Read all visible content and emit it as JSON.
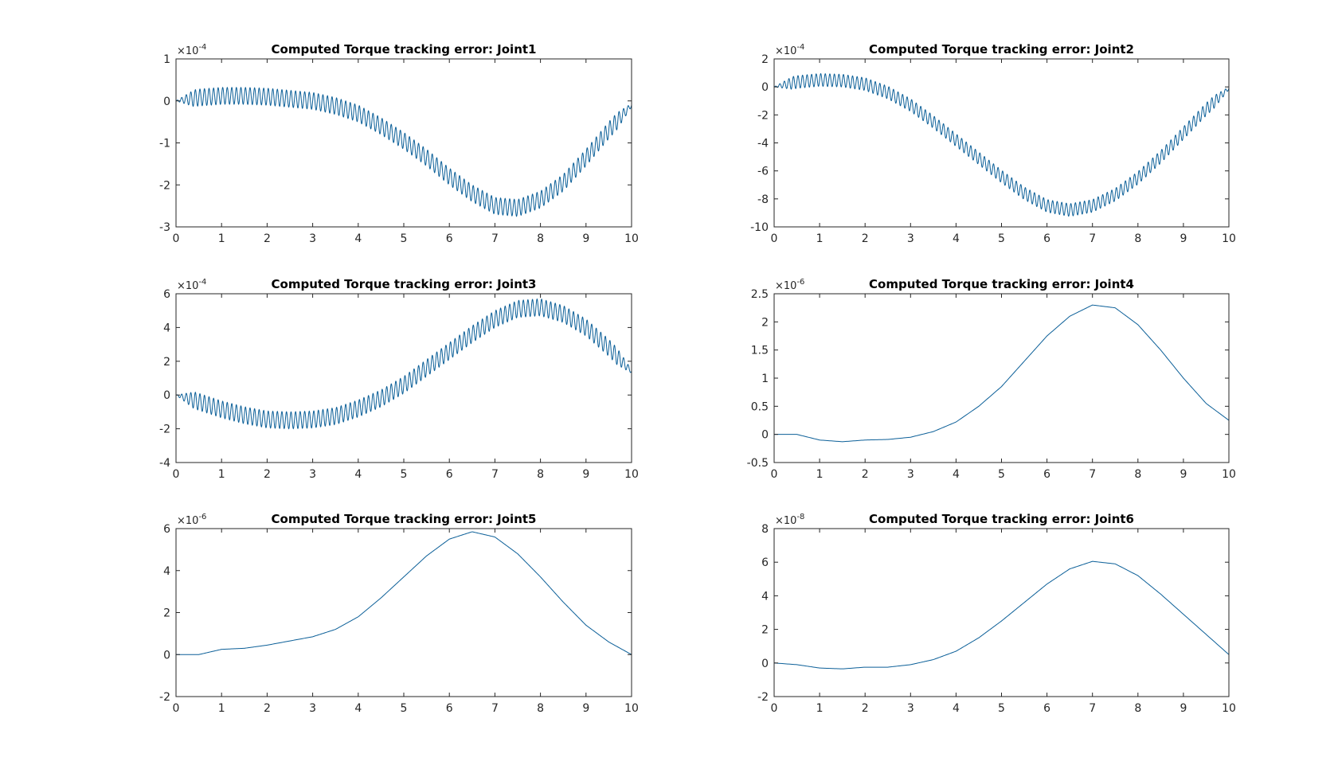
{
  "chart_data": [
    {
      "type": "line",
      "title": "Computed Torque tracking error: Joint1",
      "xlim": [
        0,
        10
      ],
      "ylim": [
        -3,
        1
      ],
      "y_exponent": "-4",
      "xticks": [
        "0",
        "1",
        "2",
        "3",
        "4",
        "5",
        "6",
        "7",
        "8",
        "9",
        "10"
      ],
      "yticks": [
        "-3",
        "-2",
        "-1",
        "0",
        "1"
      ],
      "grid": false,
      "x": [
        0,
        0.5,
        1,
        1.5,
        2,
        2.5,
        3,
        3.5,
        4,
        4.5,
        5,
        5.5,
        6,
        6.5,
        7,
        7.5,
        8,
        8.5,
        9,
        9.5,
        10
      ],
      "series": [
        {
          "values": [
            0,
            0.08,
            0.12,
            0.12,
            0.1,
            0.05,
            0.0,
            -0.12,
            -0.3,
            -0.6,
            -0.95,
            -1.35,
            -1.8,
            -2.2,
            -2.5,
            -2.55,
            -2.35,
            -1.95,
            -1.35,
            -0.7,
            -0.1
          ],
          "oscillation_amplitude": 0.2
        }
      ]
    },
    {
      "type": "line",
      "title": "Computed Torque tracking error: Joint2",
      "xlim": [
        0,
        10
      ],
      "ylim": [
        -10,
        2
      ],
      "y_exponent": "-4",
      "xticks": [
        "0",
        "1",
        "2",
        "3",
        "4",
        "5",
        "6",
        "7",
        "8",
        "9",
        "10"
      ],
      "yticks": [
        "-10",
        "-8",
        "-6",
        "-4",
        "-2",
        "0",
        "2"
      ],
      "grid": false,
      "x": [
        0,
        0.5,
        1,
        1.5,
        2,
        2.5,
        3,
        3.5,
        4,
        4.5,
        5,
        5.5,
        6,
        6.5,
        7,
        7.5,
        8,
        8.5,
        9,
        9.5,
        10
      ],
      "series": [
        {
          "values": [
            0,
            0.35,
            0.5,
            0.45,
            0.2,
            -0.4,
            -1.3,
            -2.5,
            -3.8,
            -5.1,
            -6.4,
            -7.6,
            -8.5,
            -8.8,
            -8.5,
            -7.7,
            -6.5,
            -5.0,
            -3.3,
            -1.6,
            -0.1
          ],
          "oscillation_amplitude": 0.45
        }
      ]
    },
    {
      "type": "line",
      "title": "Computed Torque tracking error: Joint3",
      "xlim": [
        0,
        10
      ],
      "ylim": [
        -4,
        6
      ],
      "y_exponent": "-4",
      "xticks": [
        "0",
        "1",
        "2",
        "3",
        "4",
        "5",
        "6",
        "7",
        "8",
        "9",
        "10"
      ],
      "yticks": [
        "-4",
        "-2",
        "0",
        "2",
        "4",
        "6"
      ],
      "grid": false,
      "x": [
        0,
        0.5,
        1,
        1.5,
        2,
        2.5,
        3,
        3.5,
        4,
        4.5,
        5,
        5.5,
        6,
        6.5,
        7,
        7.5,
        8,
        8.5,
        9,
        9.5,
        10
      ],
      "series": [
        {
          "values": [
            0,
            -0.4,
            -0.85,
            -1.2,
            -1.45,
            -1.5,
            -1.45,
            -1.25,
            -0.8,
            -0.2,
            0.6,
            1.6,
            2.6,
            3.6,
            4.5,
            5.1,
            5.2,
            4.8,
            4.0,
            2.8,
            1.4
          ],
          "oscillation_amplitude": 0.5
        }
      ]
    },
    {
      "type": "line",
      "title": "Computed Torque tracking error: Joint4",
      "xlim": [
        0,
        10
      ],
      "ylim": [
        -0.5,
        2.5
      ],
      "y_exponent": "-6",
      "xticks": [
        "0",
        "1",
        "2",
        "3",
        "4",
        "5",
        "6",
        "7",
        "8",
        "9",
        "10"
      ],
      "yticks": [
        "-0.5",
        "0",
        "0.5",
        "1",
        "1.5",
        "2",
        "2.5"
      ],
      "grid": false,
      "x": [
        0,
        0.5,
        1,
        1.5,
        2,
        2.5,
        3,
        3.5,
        4,
        4.5,
        5,
        5.5,
        6,
        6.5,
        7,
        7.5,
        8,
        8.5,
        9,
        9.5,
        10
      ],
      "series": [
        {
          "values": [
            0,
            0.0,
            -0.1,
            -0.13,
            -0.1,
            -0.09,
            -0.05,
            0.05,
            0.22,
            0.5,
            0.85,
            1.3,
            1.75,
            2.1,
            2.3,
            2.25,
            1.95,
            1.5,
            1.0,
            0.55,
            0.25
          ],
          "oscillation_amplitude": 0
        }
      ]
    },
    {
      "type": "line",
      "title": "Computed Torque tracking error: Joint5",
      "xlim": [
        0,
        10
      ],
      "ylim": [
        -2,
        6
      ],
      "y_exponent": "-6",
      "xticks": [
        "0",
        "1",
        "2",
        "3",
        "4",
        "5",
        "6",
        "7",
        "8",
        "9",
        "10"
      ],
      "yticks": [
        "-2",
        "0",
        "2",
        "4",
        "6"
      ],
      "grid": false,
      "x": [
        0,
        0.5,
        1,
        1.5,
        2,
        2.5,
        3,
        3.5,
        4,
        4.5,
        5,
        5.5,
        6,
        6.5,
        7,
        7.5,
        8,
        8.5,
        9,
        9.5,
        10
      ],
      "series": [
        {
          "values": [
            0,
            0.0,
            0.25,
            0.3,
            0.45,
            0.65,
            0.85,
            1.2,
            1.8,
            2.7,
            3.7,
            4.7,
            5.5,
            5.85,
            5.6,
            4.8,
            3.7,
            2.5,
            1.4,
            0.6,
            0.0
          ],
          "oscillation_amplitude": 0
        }
      ]
    },
    {
      "type": "line",
      "title": "Computed Torque tracking error: Joint6",
      "xlim": [
        0,
        10
      ],
      "ylim": [
        -2,
        8
      ],
      "y_exponent": "-8",
      "xticks": [
        "0",
        "1",
        "2",
        "3",
        "4",
        "5",
        "6",
        "7",
        "8",
        "9",
        "10"
      ],
      "yticks": [
        "-2",
        "0",
        "2",
        "4",
        "6",
        "8"
      ],
      "grid": false,
      "x": [
        0,
        0.5,
        1,
        1.5,
        2,
        2.5,
        3,
        3.5,
        4,
        4.5,
        5,
        5.5,
        6,
        6.5,
        7,
        7.5,
        8,
        8.5,
        9,
        9.5,
        10
      ],
      "series": [
        {
          "values": [
            0,
            -0.1,
            -0.3,
            -0.35,
            -0.25,
            -0.25,
            -0.1,
            0.2,
            0.7,
            1.5,
            2.5,
            3.6,
            4.7,
            5.6,
            6.05,
            5.9,
            5.2,
            4.1,
            2.9,
            1.7,
            0.5
          ],
          "oscillation_amplitude": 0
        }
      ]
    }
  ]
}
